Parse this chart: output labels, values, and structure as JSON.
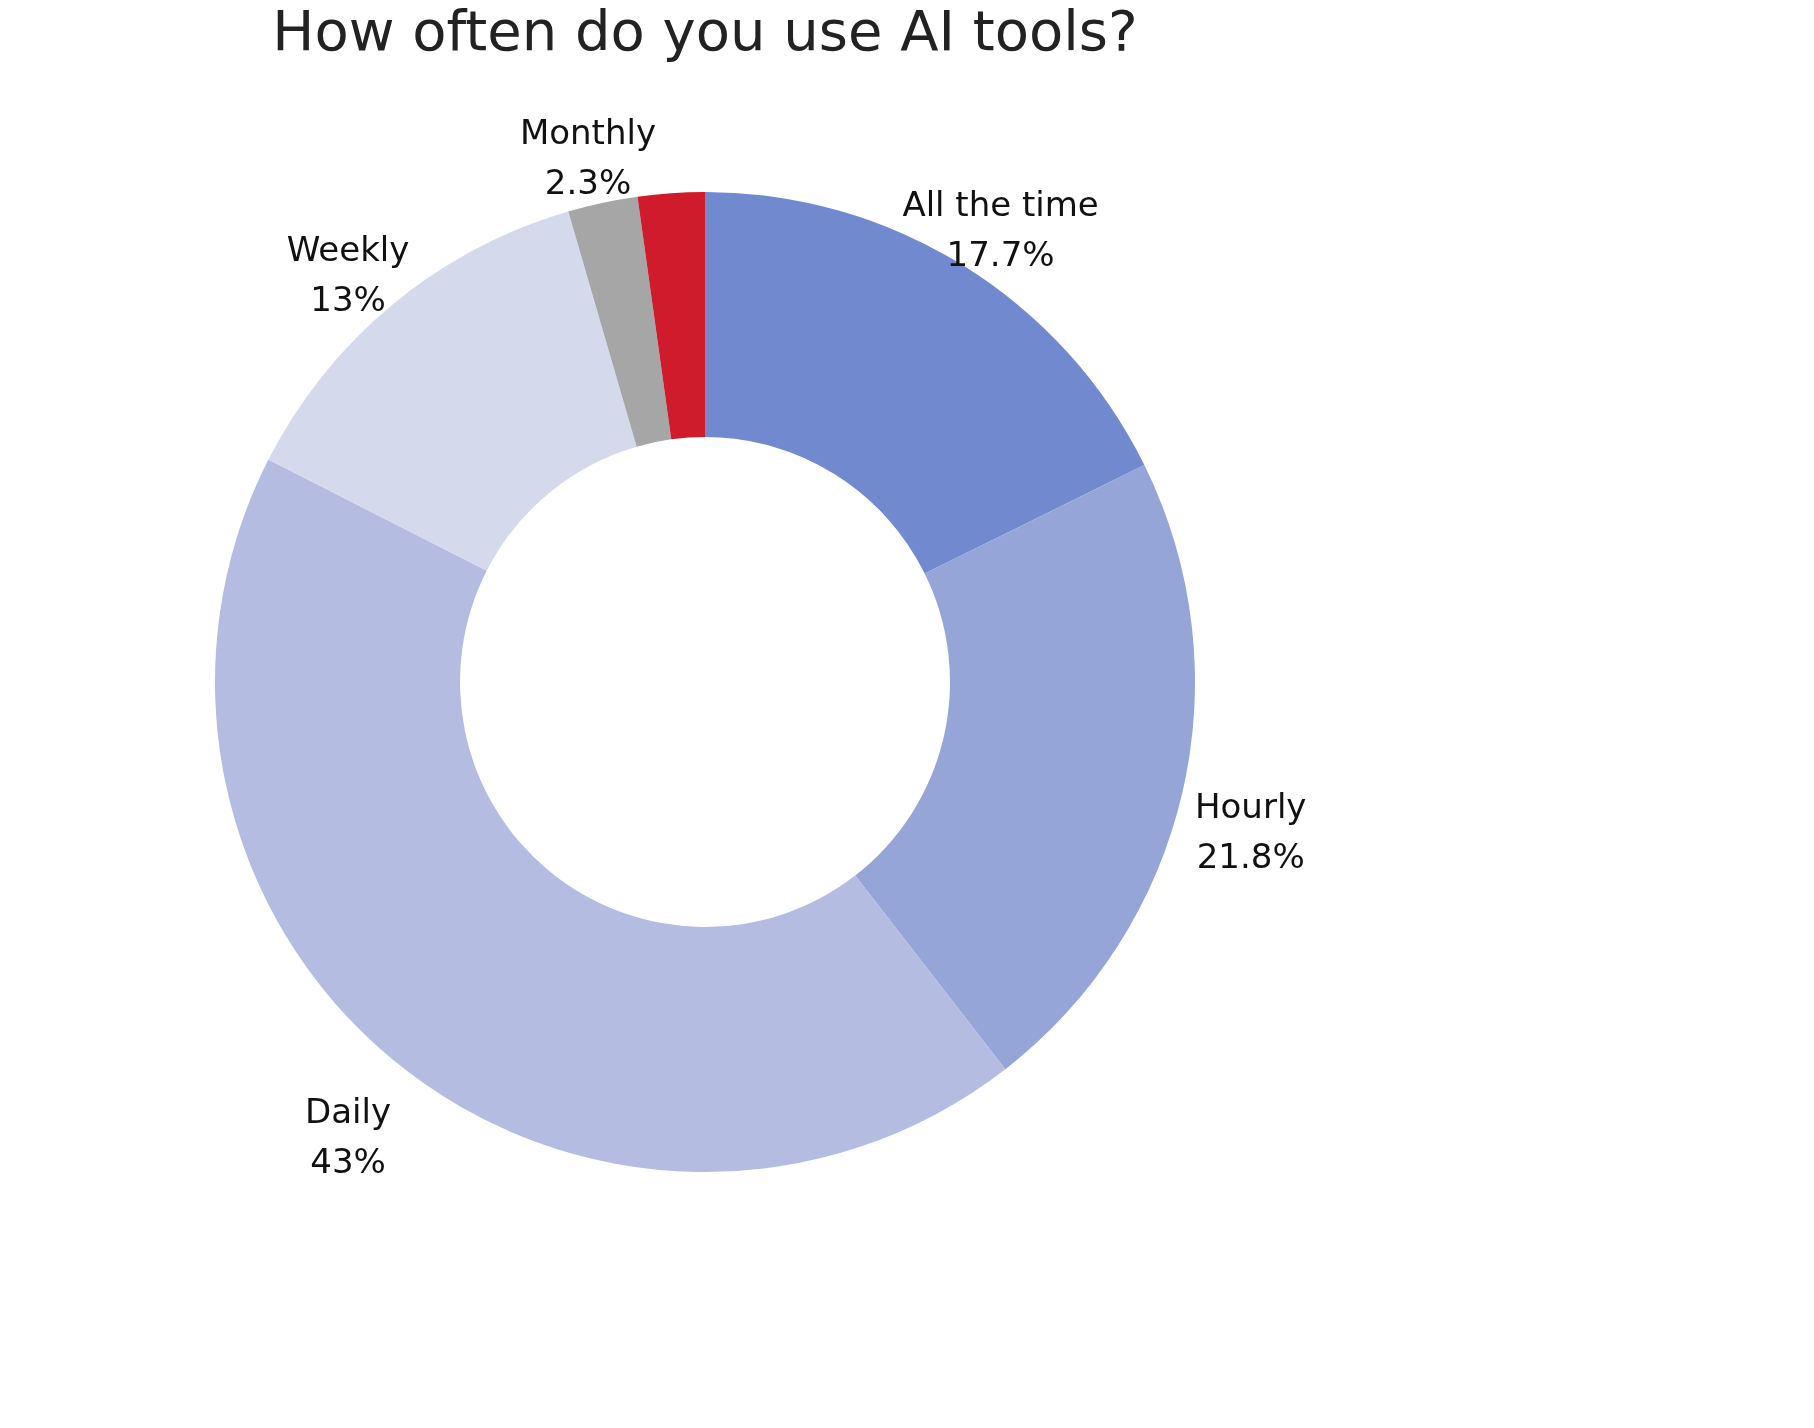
{
  "chart_data": {
    "type": "donut",
    "title": "How often do you use AI tools?",
    "categories": [
      "All the time",
      "Hourly",
      "Daily",
      "Weekly",
      "Monthly",
      null
    ],
    "values": [
      17.7,
      21.8,
      43,
      13,
      2.3,
      2.2
    ],
    "value_labels": [
      "17.7%",
      "21.8%",
      "43%",
      "13%",
      "2.3%",
      null
    ],
    "colors": [
      "#7089cf",
      "#95a5d8",
      "#b4bce2",
      "#d5d9ec",
      "#a6a6a6",
      "#cf1b2b"
    ],
    "legend": false
  }
}
